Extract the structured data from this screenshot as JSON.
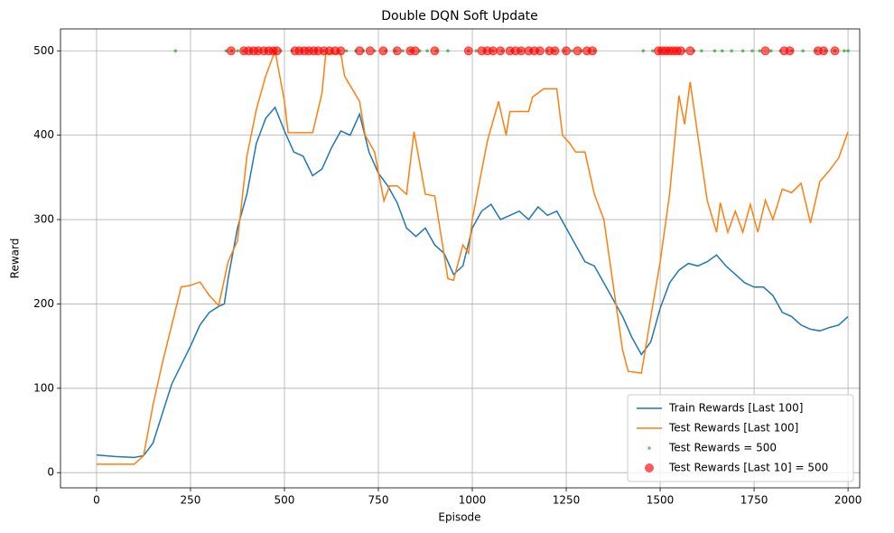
{
  "chart_data": {
    "type": "line",
    "title": "Double DQN Soft Update",
    "x_label": "Episode",
    "y_label": "Reward",
    "xlim": [
      -96,
      2031
    ],
    "ylim": [
      -18,
      526
    ],
    "xticks": [
      0,
      250,
      500,
      750,
      1000,
      1250,
      1500,
      1750,
      2000
    ],
    "yticks": [
      0,
      100,
      200,
      300,
      400,
      500
    ],
    "grid": true,
    "legend": "lower right",
    "series": [
      {
        "name": "Train Rewards [Last 100]",
        "kind": "line",
        "color": "#1f77b4",
        "x": [
          0,
          50,
          100,
          125,
          150,
          175,
          200,
          250,
          275,
          300,
          325,
          340,
          350,
          375,
          400,
          425,
          450,
          475,
          500,
          525,
          550,
          575,
          600,
          625,
          650,
          675,
          700,
          725,
          750,
          775,
          800,
          825,
          850,
          875,
          900,
          925,
          950,
          975,
          1000,
          1025,
          1050,
          1075,
          1100,
          1125,
          1150,
          1175,
          1200,
          1225,
          1250,
          1275,
          1300,
          1325,
          1350,
          1375,
          1400,
          1425,
          1450,
          1475,
          1500,
          1525,
          1550,
          1575,
          1600,
          1625,
          1650,
          1675,
          1700,
          1725,
          1750,
          1775,
          1800,
          1825,
          1850,
          1875,
          1900,
          1925,
          1950,
          1975,
          2000
        ],
        "values": [
          21,
          19,
          18,
          20,
          35,
          70,
          105,
          150,
          175,
          190,
          197,
          200,
          230,
          290,
          330,
          390,
          420,
          433,
          405,
          380,
          375,
          352,
          360,
          385,
          405,
          400,
          425,
          380,
          355,
          340,
          320,
          290,
          280,
          290,
          270,
          260,
          235,
          245,
          290,
          310,
          318,
          300,
          305,
          310,
          300,
          315,
          305,
          310,
          290,
          270,
          250,
          245,
          225,
          205,
          185,
          160,
          140,
          155,
          195,
          225,
          240,
          248,
          245,
          250,
          258,
          245,
          235,
          225,
          220,
          220,
          210,
          190,
          185,
          175,
          170,
          168,
          172,
          175,
          185
        ]
      },
      {
        "name": "Test Rewards [Last 100]",
        "kind": "line",
        "color": "#ff7f0e",
        "x": [
          0,
          100,
          125,
          150,
          175,
          200,
          225,
          250,
          275,
          300,
          325,
          350,
          375,
          400,
          425,
          450,
          475,
          500,
          510,
          575,
          600,
          610,
          650,
          660,
          700,
          715,
          740,
          765,
          780,
          800,
          825,
          845,
          875,
          900,
          935,
          950,
          975,
          990,
          1000,
          1040,
          1070,
          1090,
          1100,
          1150,
          1160,
          1190,
          1225,
          1240,
          1260,
          1275,
          1300,
          1325,
          1350,
          1375,
          1400,
          1415,
          1450,
          1475,
          1500,
          1525,
          1550,
          1565,
          1580,
          1600,
          1625,
          1650,
          1660,
          1680,
          1700,
          1720,
          1740,
          1760,
          1780,
          1800,
          1825,
          1850,
          1875,
          1900,
          1925,
          1950,
          1975,
          2000
        ],
        "values": [
          10,
          10,
          20,
          80,
          130,
          175,
          220,
          222,
          226,
          210,
          198,
          250,
          275,
          375,
          430,
          470,
          500,
          440,
          403,
          403,
          450,
          497,
          497,
          470,
          440,
          400,
          380,
          322,
          340,
          340,
          330,
          404,
          330,
          328,
          230,
          228,
          270,
          260,
          300,
          393,
          440,
          400,
          428,
          428,
          445,
          455,
          455,
          400,
          390,
          380,
          380,
          330,
          300,
          222,
          145,
          120,
          118,
          185,
          250,
          330,
          447,
          413,
          463,
          400,
          323,
          285,
          320,
          285,
          310,
          285,
          318,
          285,
          323,
          300,
          336,
          332,
          343,
          296,
          345,
          358,
          373,
          404
        ]
      },
      {
        "name": "Test Rewards = 500",
        "kind": "scatter",
        "color": "#2ca02c",
        "x": [
          210,
          345,
          360,
          375,
          390,
          410,
          430,
          450,
          470,
          490,
          520,
          545,
          565,
          585,
          605,
          625,
          645,
          665,
          690,
          710,
          740,
          770,
          795,
          815,
          835,
          860,
          880,
          905,
          935,
          990,
          1010,
          1035,
          1055,
          1080,
          1105,
          1130,
          1155,
          1175,
          1200,
          1220,
          1245,
          1265,
          1290,
          1310,
          1325,
          1455,
          1480,
          1500,
          1520,
          1545,
          1565,
          1590,
          1610,
          1645,
          1665,
          1690,
          1720,
          1745,
          1765,
          1795,
          1820,
          1850,
          1880,
          1915,
          1940,
          1965,
          1990,
          2000
        ],
        "values": [
          500,
          500,
          500,
          500,
          500,
          500,
          500,
          500,
          500,
          500,
          500,
          500,
          500,
          500,
          500,
          500,
          500,
          500,
          500,
          500,
          500,
          500,
          500,
          500,
          500,
          500,
          500,
          500,
          500,
          500,
          500,
          500,
          500,
          500,
          500,
          500,
          500,
          500,
          500,
          500,
          500,
          500,
          500,
          500,
          500,
          500,
          500,
          500,
          500,
          500,
          500,
          500,
          500,
          500,
          500,
          500,
          500,
          500,
          500,
          500,
          500,
          500,
          500,
          500,
          500,
          500,
          500,
          500
        ]
      },
      {
        "name": "Test Rewards [Last 10] = 500",
        "kind": "scatter",
        "color": "#ff0000",
        "x": [
          358,
          392,
          405,
          418,
          430,
          445,
          458,
          470,
          480,
          528,
          540,
          553,
          565,
          578,
          590,
          605,
          620,
          635,
          650,
          700,
          728,
          763,
          800,
          835,
          848,
          900,
          990,
          1025,
          1040,
          1055,
          1075,
          1100,
          1115,
          1130,
          1150,
          1165,
          1180,
          1205,
          1220,
          1250,
          1280,
          1305,
          1320,
          1495,
          1505,
          1515,
          1525,
          1535,
          1545,
          1555,
          1580,
          1780,
          1830,
          1845,
          1920,
          1935,
          1965
        ],
        "values": [
          500,
          500,
          500,
          500,
          500,
          500,
          500,
          500,
          500,
          500,
          500,
          500,
          500,
          500,
          500,
          500,
          500,
          500,
          500,
          500,
          500,
          500,
          500,
          500,
          500,
          500,
          500,
          500,
          500,
          500,
          500,
          500,
          500,
          500,
          500,
          500,
          500,
          500,
          500,
          500,
          500,
          500,
          500,
          500,
          500,
          500,
          500,
          500,
          500,
          500,
          500,
          500,
          500,
          500,
          500,
          500,
          500
        ]
      }
    ]
  }
}
